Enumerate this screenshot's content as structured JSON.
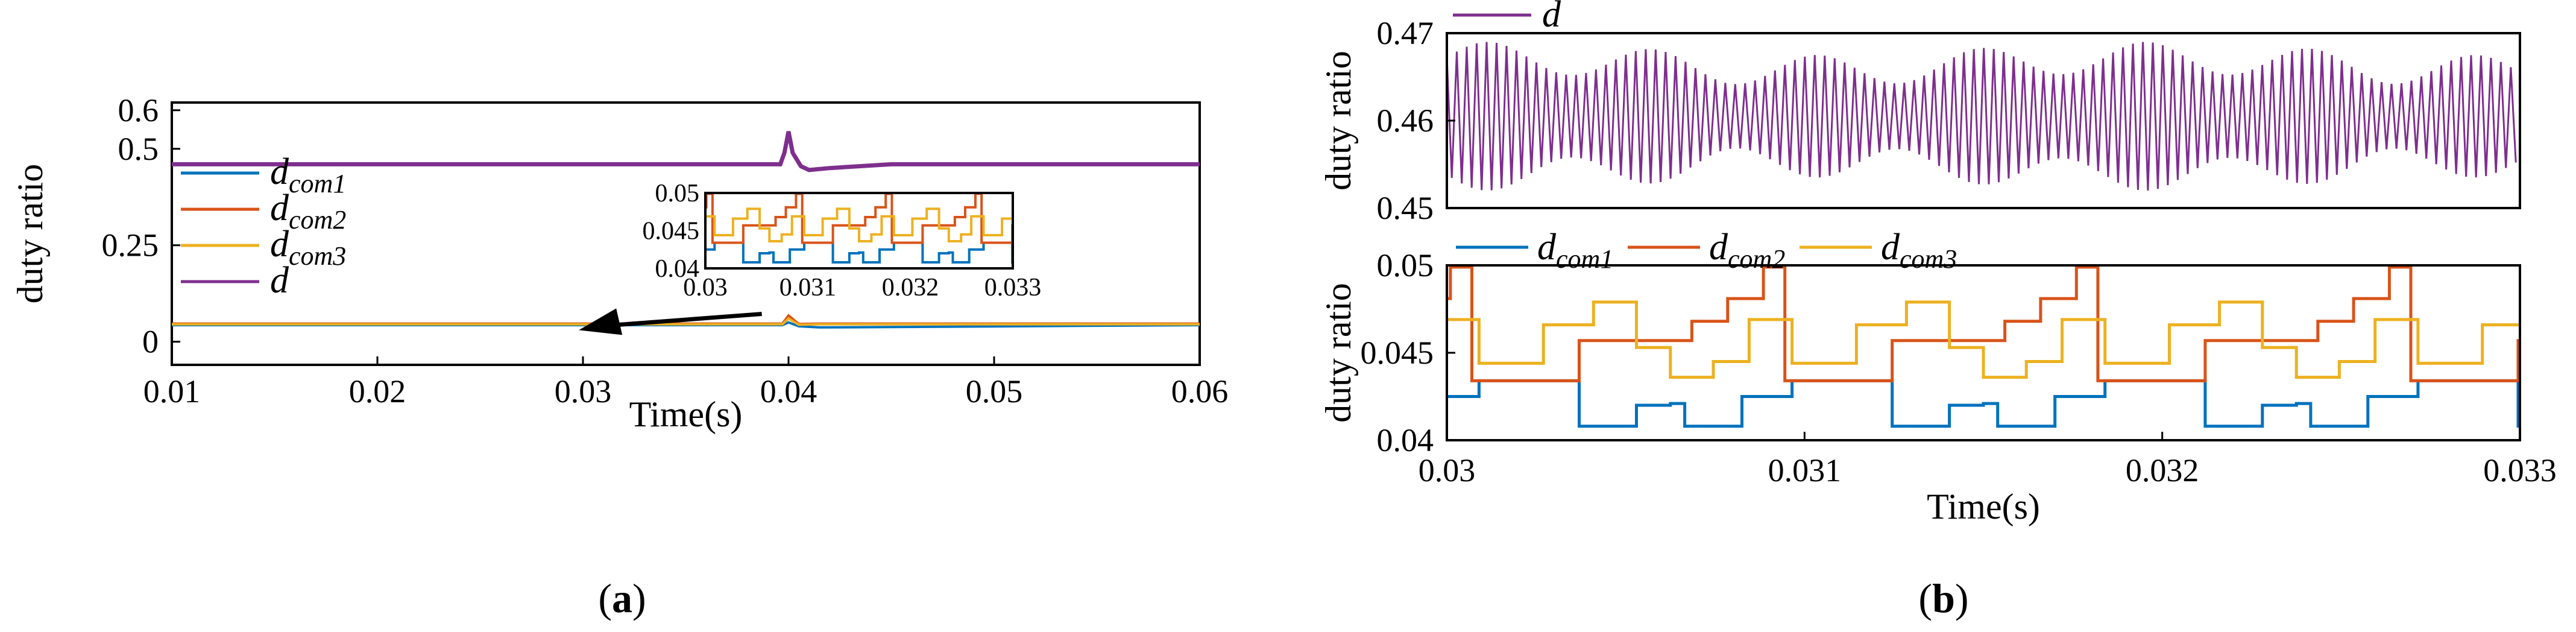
{
  "colors": {
    "d_com1": "#0072BD",
    "d_com2": "#D95319",
    "d_com3": "#EDB120",
    "d": "#7E2F8E"
  },
  "captions": {
    "a": "a",
    "b": "b"
  },
  "chart_data": [
    {
      "id": "a",
      "type": "line",
      "xlabel": "Time(s)",
      "ylabel": "duty ratio",
      "xlim": [
        0.01,
        0.06
      ],
      "ylim": [
        -0.06,
        0.62
      ],
      "xticks": [
        0.01,
        0.02,
        0.03,
        0.04,
        0.05,
        0.06
      ],
      "xtick_labels": [
        "0.01",
        "0.02",
        "0.03",
        "0.04",
        "0.05",
        "0.06"
      ],
      "yticks": [
        0,
        0.25,
        0.5,
        0.6
      ],
      "ytick_labels": [
        "0",
        "0.25",
        "0.5",
        "0.6"
      ],
      "legend": {
        "position": "middle-left",
        "entries": [
          {
            "key": "d_com1",
            "base": "d",
            "sub": "com1"
          },
          {
            "key": "d_com2",
            "base": "d",
            "sub": "com2"
          },
          {
            "key": "d_com3",
            "base": "d",
            "sub": "com3"
          },
          {
            "key": "d",
            "base": "d",
            "sub": ""
          }
        ]
      },
      "series": [
        {
          "name": "d_com1",
          "x": [
            0.01,
            0.0397,
            0.04,
            0.0405,
            0.0415,
            0.045,
            0.06
          ],
          "y": [
            0.043,
            0.043,
            0.05,
            0.04,
            0.037,
            0.038,
            0.043
          ]
        },
        {
          "name": "d_com2",
          "x": [
            0.01,
            0.0397,
            0.04,
            0.0405,
            0.0415,
            0.06
          ],
          "y": [
            0.047,
            0.047,
            0.068,
            0.046,
            0.047,
            0.047
          ]
        },
        {
          "name": "d_com3",
          "x": [
            0.01,
            0.0397,
            0.04,
            0.0405,
            0.0415,
            0.06
          ],
          "y": [
            0.045,
            0.045,
            0.06,
            0.044,
            0.045,
            0.045
          ]
        },
        {
          "name": "d",
          "x": [
            0.01,
            0.0396,
            0.0398,
            0.04,
            0.0402,
            0.0406,
            0.041,
            0.042,
            0.045,
            0.06
          ],
          "y": [
            0.46,
            0.46,
            0.49,
            0.545,
            0.49,
            0.455,
            0.445,
            0.45,
            0.46,
            0.46
          ]
        }
      ],
      "annotation": {
        "type": "arrow",
        "from": [
          0.0387,
          0.072
        ],
        "to": [
          0.0298,
          0.03
        ],
        "text": ""
      },
      "inset": {
        "xlim": [
          0.03,
          0.033
        ],
        "ylim": [
          0.04,
          0.05
        ],
        "xticks": [
          0.03,
          0.031,
          0.032,
          0.033
        ],
        "xtick_labels": [
          "0.03",
          "0.031",
          "0.032",
          "0.033"
        ],
        "yticks": [
          0.04,
          0.045,
          0.05
        ],
        "ytick_labels": [
          "0.04",
          "0.045",
          "0.05"
        ]
      }
    },
    {
      "id": "b-top",
      "type": "line",
      "xlabel": "",
      "ylabel": "duty ratio",
      "xlim": [
        0.03,
        0.033
      ],
      "ylim": [
        0.45,
        0.47
      ],
      "yticks": [
        0.45,
        0.46,
        0.47
      ],
      "ytick_labels": [
        "0.45",
        "0.46",
        "0.47"
      ],
      "legend": {
        "position": "top-left",
        "entries": [
          {
            "key": "d",
            "base": "d",
            "sub": ""
          }
        ]
      },
      "series": [
        {
          "name": "d",
          "oscillation": {
            "period": 2.78e-05,
            "center": 0.4605,
            "amplitude_min": 0.0035,
            "amplitude_max": 0.0085
          }
        }
      ]
    },
    {
      "id": "b-bottom",
      "type": "line",
      "xlabel": "Time(s)",
      "ylabel": "duty ratio",
      "xlim": [
        0.03,
        0.033
      ],
      "ylim": [
        0.04,
        0.05
      ],
      "xticks": [
        0.03,
        0.031,
        0.032,
        0.033
      ],
      "xtick_labels": [
        "0.03",
        "0.031",
        "0.032",
        "0.033"
      ],
      "yticks": [
        0.04,
        0.045,
        0.05
      ],
      "ytick_labels": [
        "0.04",
        "0.045",
        "0.05"
      ],
      "legend": {
        "position": "top",
        "entries": [
          {
            "key": "d_com1",
            "base": "d",
            "sub": "com1"
          },
          {
            "key": "d_com2",
            "base": "d",
            "sub": "com2"
          },
          {
            "key": "d_com3",
            "base": "d",
            "sub": "com3"
          }
        ]
      },
      "series": [
        {
          "name": "d_com1",
          "period": 0.000875,
          "steps": [
            [
              0,
              0.0421
            ],
            [
              4e-05,
              0.0408
            ],
            [
              0.0002,
              0.0425
            ],
            [
              0.00034,
              0.0434
            ],
            [
              0.00062,
              0.0408
            ],
            [
              0.00078,
              0.042
            ]
          ]
        },
        {
          "name": "d_com2",
          "period": 0.000875,
          "steps": [
            [
              0,
              0.0457
            ],
            [
              6e-05,
              0.0468
            ],
            [
              0.00016,
              0.0481
            ],
            [
              0.00026,
              0.0499
            ],
            [
              0.00032,
              0.0434
            ],
            [
              0.00062,
              0.0457
            ]
          ]
        },
        {
          "name": "d_com3",
          "period": 0.000875,
          "steps": [
            [
              0,
              0.0436
            ],
            [
              0.00012,
              0.0445
            ],
            [
              0.00022,
              0.0469
            ],
            [
              0.00034,
              0.0444
            ],
            [
              0.00052,
              0.0466
            ],
            [
              0.00066,
              0.0479
            ],
            [
              0.00078,
              0.0453
            ]
          ]
        }
      ]
    }
  ]
}
